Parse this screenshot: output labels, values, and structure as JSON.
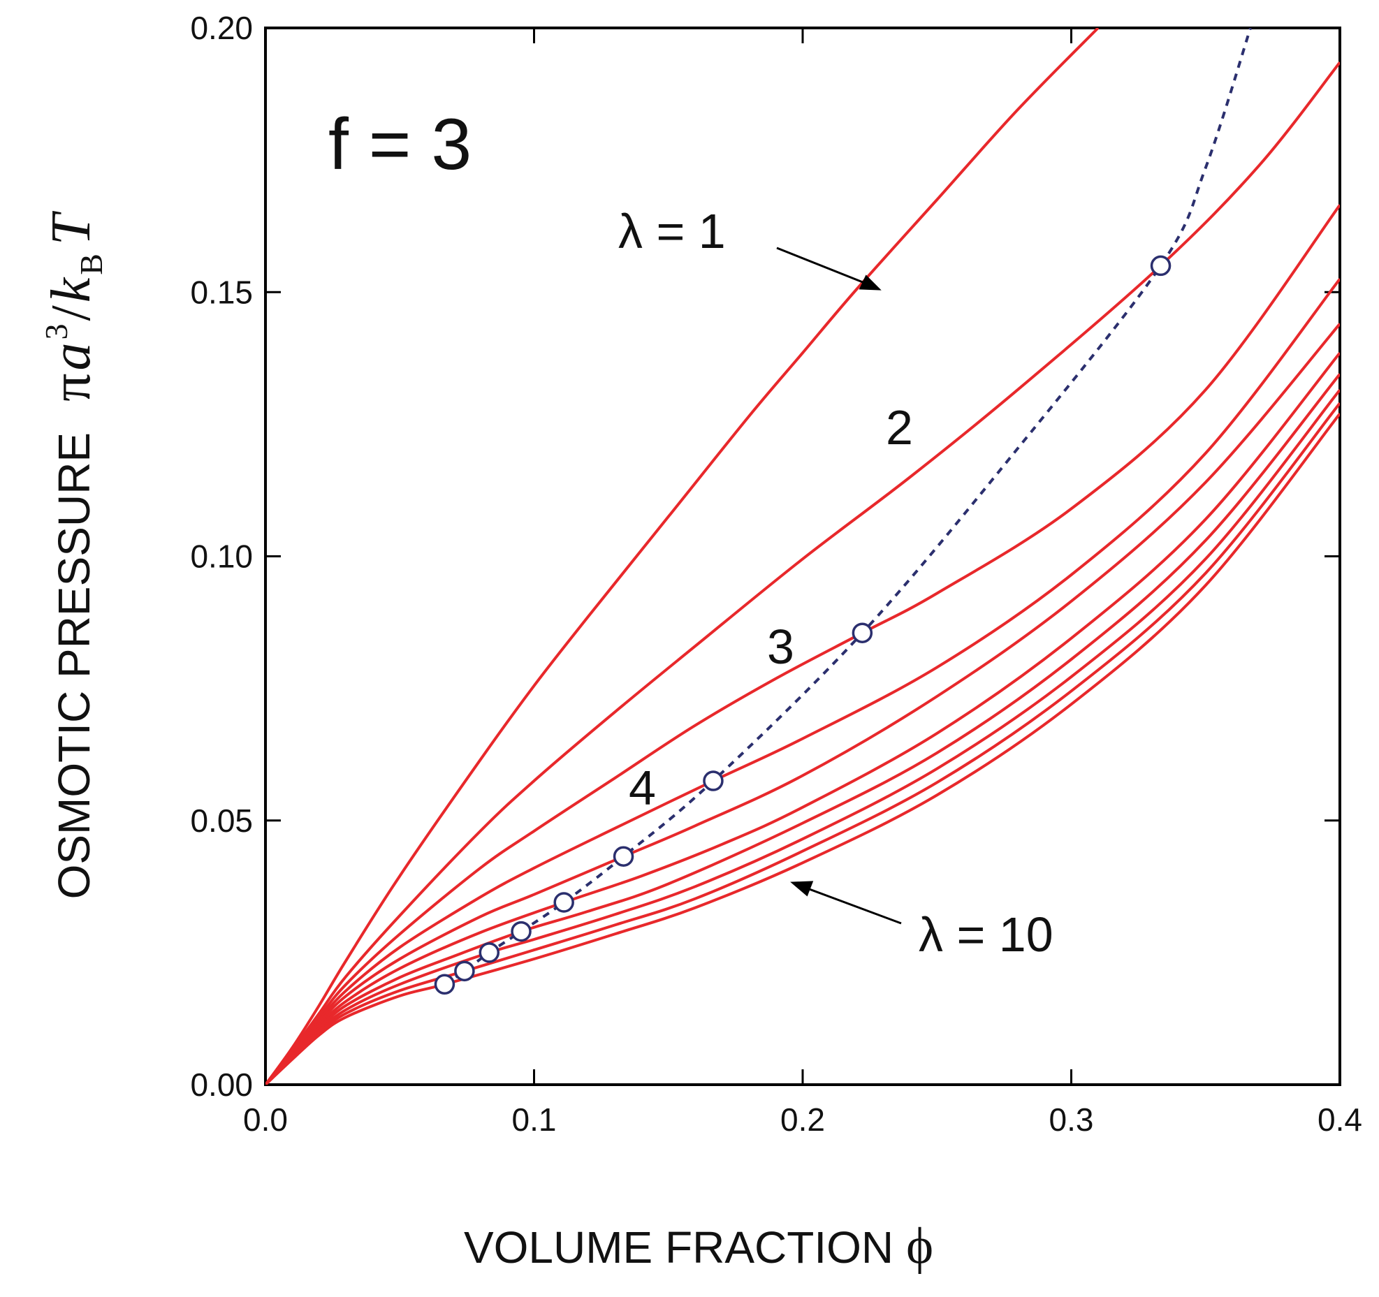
{
  "chart_data": {
    "type": "line",
    "xlabel": "VOLUME FRACTION",
    "xlabel_symbol": "ϕ",
    "ylabel": "OSMOTIC PRESSURE",
    "ylabel_symbol": {
      "pi": "π",
      "a": "a",
      "exp": "3",
      "slash": "/",
      "k": "k",
      "sub": "B",
      "T": "T"
    },
    "xlim": [
      0.0,
      0.4
    ],
    "ylim": [
      0.0,
      0.2
    ],
    "x_ticks": [
      "0.0",
      "0.1",
      "0.2",
      "0.3",
      "0.4"
    ],
    "y_ticks": [
      "0.00",
      "0.05",
      "0.10",
      "0.15",
      "0.20"
    ],
    "grid": false,
    "colors": {
      "curves": "#e8282b",
      "overlap": "#2b2f6e",
      "axes": "#000000"
    },
    "annotations": {
      "panel": "f = 3",
      "lambda_1": "λ = 1",
      "lambda_2": "2",
      "lambda_3": "3",
      "lambda_4": "4",
      "lambda_10": "λ = 10"
    },
    "series": [
      {
        "lambda": 1,
        "x": [
          0,
          0.01,
          0.02,
          0.03,
          0.05,
          0.08,
          0.1,
          0.12,
          0.15,
          0.18,
          0.2,
          0.22,
          0.25,
          0.28,
          0.31
        ],
        "y": [
          0,
          0.007,
          0.015,
          0.0235,
          0.0395,
          0.0615,
          0.0755,
          0.0885,
          0.1075,
          0.1265,
          0.1385,
          0.1505,
          0.1675,
          0.1845,
          0.2
        ]
      },
      {
        "lambda": 2,
        "x": [
          0,
          0.01,
          0.02,
          0.03,
          0.05,
          0.08,
          0.1,
          0.13,
          0.16,
          0.2,
          0.24,
          0.28,
          0.3333,
          0.37,
          0.4
        ],
        "y": [
          0,
          0.0065,
          0.0135,
          0.0205,
          0.032,
          0.048,
          0.0575,
          0.0705,
          0.083,
          0.0995,
          0.115,
          0.1315,
          0.155,
          0.174,
          0.1935
        ]
      },
      {
        "lambda": 3,
        "x": [
          0,
          0.01,
          0.02,
          0.03,
          0.05,
          0.08,
          0.1,
          0.13,
          0.16,
          0.1905,
          0.2222,
          0.25,
          0.3,
          0.35,
          0.4
        ],
        "y": [
          0,
          0.0062,
          0.0128,
          0.019,
          0.0285,
          0.041,
          0.048,
          0.058,
          0.068,
          0.077,
          0.0855,
          0.093,
          0.109,
          0.1315,
          0.1665
        ]
      },
      {
        "lambda": 4,
        "x": [
          0,
          0.01,
          0.02,
          0.03,
          0.05,
          0.08,
          0.1,
          0.13,
          0.1667,
          0.2,
          0.25,
          0.3,
          0.35,
          0.4
        ],
        "y": [
          0,
          0.006,
          0.0122,
          0.0178,
          0.026,
          0.0355,
          0.041,
          0.0485,
          0.0575,
          0.0655,
          0.079,
          0.0965,
          0.1195,
          0.1525
        ]
      },
      {
        "lambda": 5,
        "x": [
          0,
          0.01,
          0.02,
          0.03,
          0.05,
          0.08,
          0.1,
          0.1333,
          0.16,
          0.2,
          0.25,
          0.3,
          0.35,
          0.4
        ],
        "y": [
          0,
          0.0058,
          0.0117,
          0.0168,
          0.0238,
          0.0318,
          0.036,
          0.0432,
          0.049,
          0.0585,
          0.0735,
          0.0915,
          0.114,
          0.144
        ]
      },
      {
        "lambda": 6,
        "x": [
          0,
          0.01,
          0.02,
          0.03,
          0.05,
          0.08,
          0.1111,
          0.14,
          0.17,
          0.2,
          0.25,
          0.3,
          0.35,
          0.4
        ],
        "y": [
          0,
          0.0056,
          0.0112,
          0.0158,
          0.022,
          0.0288,
          0.0345,
          0.0395,
          0.0455,
          0.0525,
          0.0665,
          0.0845,
          0.107,
          0.1385
        ]
      },
      {
        "lambda": 7,
        "x": [
          0,
          0.01,
          0.02,
          0.03,
          0.05,
          0.07,
          0.0952,
          0.12,
          0.15,
          0.2,
          0.25,
          0.3,
          0.35,
          0.4
        ],
        "y": [
          0,
          0.0054,
          0.0107,
          0.015,
          0.0203,
          0.0243,
          0.029,
          0.0328,
          0.038,
          0.0495,
          0.0628,
          0.0805,
          0.103,
          0.1345
        ]
      },
      {
        "lambda": 8,
        "x": [
          0,
          0.01,
          0.02,
          0.03,
          0.05,
          0.0833,
          0.1,
          0.13,
          0.16,
          0.2,
          0.25,
          0.3,
          0.35,
          0.4
        ],
        "y": [
          0,
          0.0052,
          0.0102,
          0.0142,
          0.019,
          0.025,
          0.0275,
          0.0322,
          0.0375,
          0.0465,
          0.0598,
          0.0772,
          0.0995,
          0.1315
        ]
      },
      {
        "lambda": 9,
        "x": [
          0,
          0.01,
          0.02,
          0.03,
          0.05,
          0.0741,
          0.1,
          0.13,
          0.16,
          0.2,
          0.25,
          0.3,
          0.35,
          0.4
        ],
        "y": [
          0,
          0.005,
          0.0098,
          0.0135,
          0.0178,
          0.0215,
          0.0255,
          0.0302,
          0.0352,
          0.0442,
          0.0572,
          0.0745,
          0.0968,
          0.129
        ]
      },
      {
        "lambda": 10,
        "x": [
          0,
          0.01,
          0.02,
          0.03,
          0.05,
          0.0667,
          0.1,
          0.13,
          0.16,
          0.2,
          0.25,
          0.3,
          0.35,
          0.4
        ],
        "y": [
          0,
          0.0048,
          0.0094,
          0.0128,
          0.0168,
          0.019,
          0.0238,
          0.0285,
          0.0335,
          0.042,
          0.0548,
          0.072,
          0.0945,
          0.127
        ]
      }
    ],
    "overlap_points": {
      "x": [
        0.0667,
        0.0741,
        0.0833,
        0.0952,
        0.1111,
        0.1333,
        0.1667,
        0.2222,
        0.3333
      ],
      "y": [
        0.019,
        0.0215,
        0.025,
        0.029,
        0.0345,
        0.0432,
        0.0575,
        0.0855,
        0.155
      ]
    },
    "overlap_curve": {
      "x": [
        0.0667,
        0.0741,
        0.0833,
        0.0952,
        0.1111,
        0.1333,
        0.1667,
        0.2222,
        0.2778,
        0.3333,
        0.35,
        0.3667
      ],
      "y": [
        0.019,
        0.0215,
        0.025,
        0.029,
        0.0345,
        0.0432,
        0.0575,
        0.0855,
        0.119,
        0.155,
        0.1735,
        0.2
      ]
    }
  }
}
